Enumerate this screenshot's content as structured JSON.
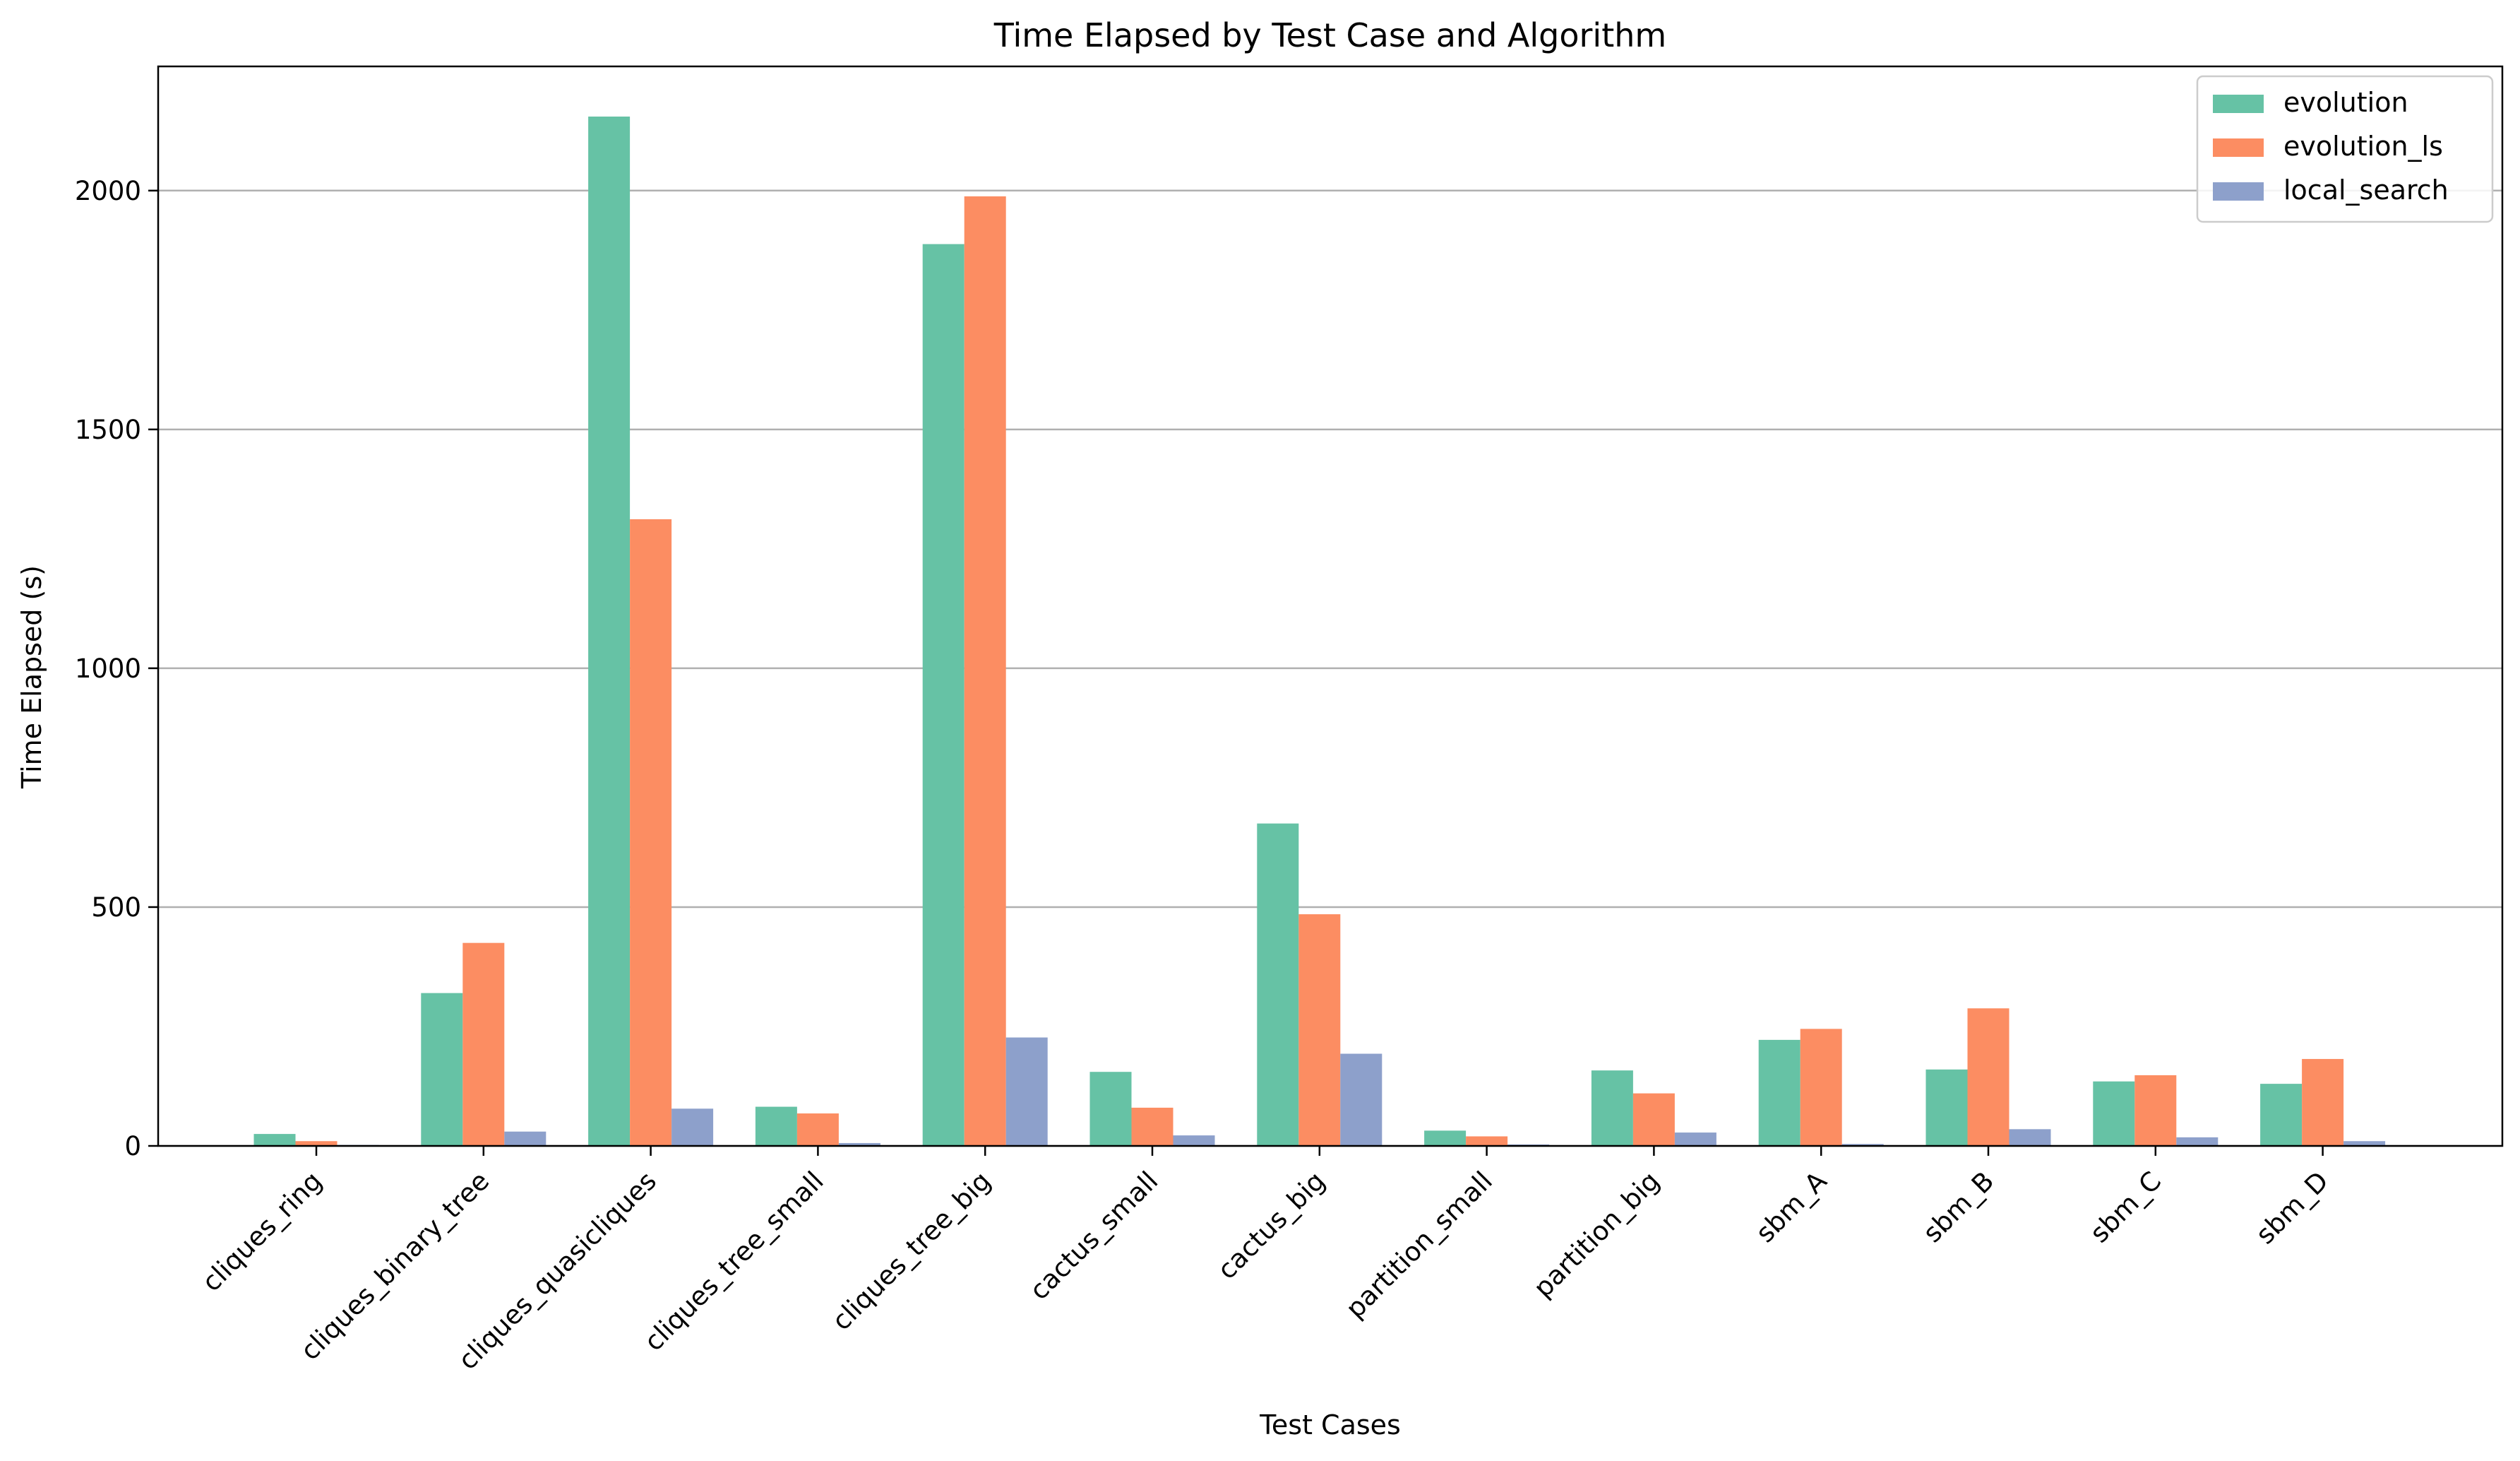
{
  "chart_data": {
    "type": "bar",
    "title": "Time Elapsed by Test Case and Algorithm",
    "xlabel": "Test Cases",
    "ylabel": "Time Elapsed (s)",
    "ylim": [
      0,
      2260
    ],
    "yticks": [
      0,
      500,
      1000,
      1500,
      2000
    ],
    "grid": "y",
    "legend_position": "top-right",
    "categories": [
      "cliques_ring",
      "cliques_binary_tree",
      "cliques_quasicliques",
      "cliques_tree_small",
      "cliques_tree_big",
      "cactus_small",
      "cactus_big",
      "partition_small",
      "partition_big",
      "sbm_A",
      "sbm_B",
      "sbm_C",
      "sbm_D"
    ],
    "series": [
      {
        "name": "evolution",
        "color": "#66c2a5",
        "values": [
          25,
          320,
          2155,
          82,
          1888,
          155,
          675,
          32,
          158,
          222,
          160,
          135,
          130
        ]
      },
      {
        "name": "evolution_ls",
        "color": "#fc8d62",
        "values": [
          10,
          425,
          1312,
          68,
          1988,
          80,
          485,
          20,
          110,
          245,
          288,
          148,
          182
        ]
      },
      {
        "name": "local_search",
        "color": "#8da0cb",
        "values": [
          2,
          30,
          78,
          6,
          227,
          22,
          193,
          3,
          28,
          4,
          35,
          18,
          10
        ]
      }
    ]
  }
}
